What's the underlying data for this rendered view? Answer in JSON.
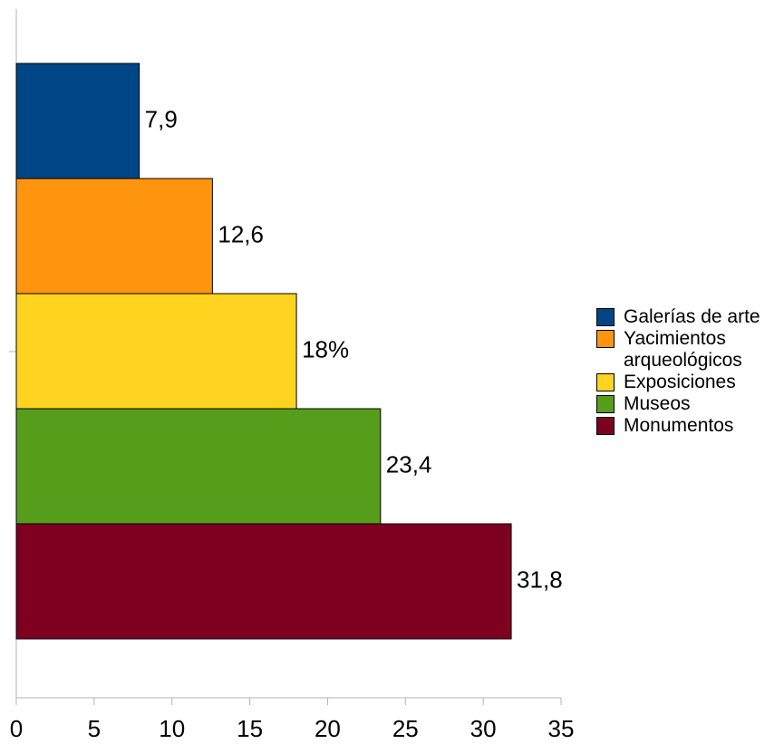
{
  "chart_data": {
    "type": "bar",
    "orientation": "horizontal",
    "categories": [
      null
    ],
    "series": [
      {
        "name": "Galerías de arte",
        "color": "#004586",
        "values": [
          7.9
        ],
        "value_labels": [
          "7,9"
        ]
      },
      {
        "name": "Yacimientos arqueológicos",
        "color": "#ff950e",
        "values": [
          12.6
        ],
        "value_labels": [
          "12,6"
        ]
      },
      {
        "name": "Exposiciones",
        "color": "#ffd320",
        "values": [
          18
        ],
        "value_labels": [
          "18%"
        ]
      },
      {
        "name": "Museos",
        "color": "#579d1c",
        "values": [
          23.4
        ],
        "value_labels": [
          "23,4"
        ]
      },
      {
        "name": "Monumentos",
        "color": "#7e0021",
        "values": [
          31.8
        ],
        "value_labels": [
          "31,8"
        ]
      }
    ],
    "xlim": [
      0,
      35
    ],
    "xticks": [
      0,
      5,
      10,
      15,
      20,
      25,
      30,
      35
    ],
    "grid": false,
    "legend": "right"
  }
}
